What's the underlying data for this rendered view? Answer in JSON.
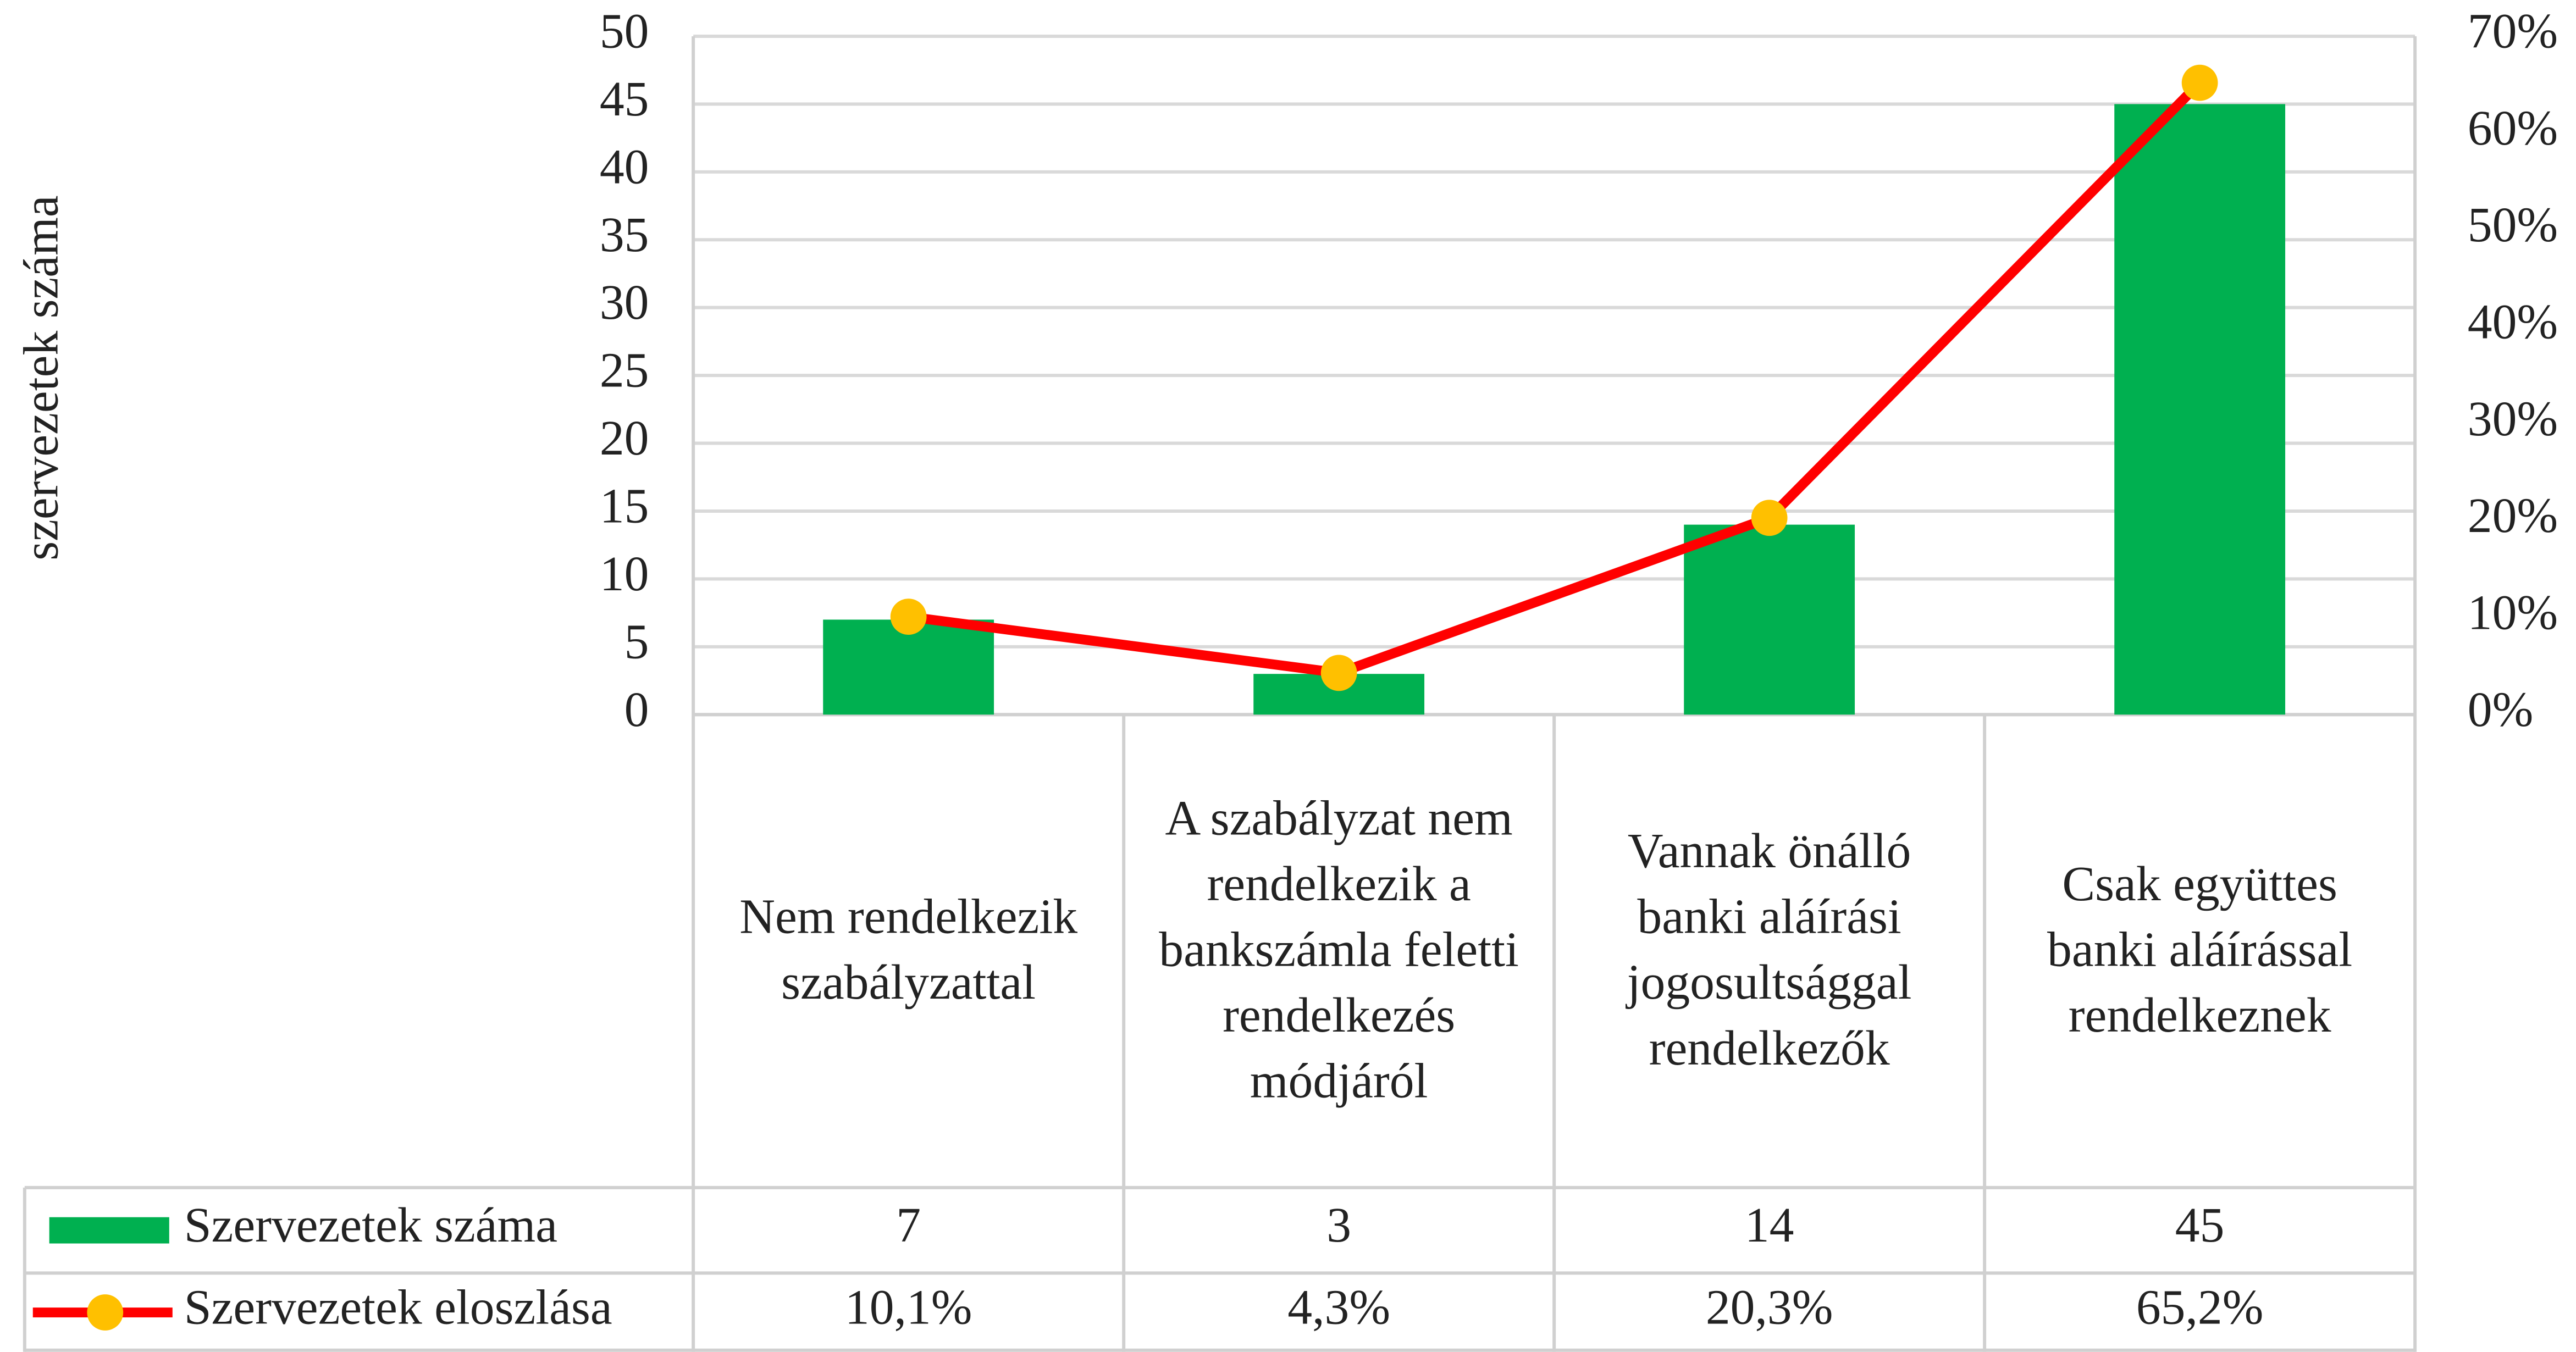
{
  "chart_data": {
    "type": "bar",
    "y_label": "szervezetek száma",
    "categories": [
      "Nem rendelkezik szabályzattal",
      "A szabályzat nem rendelkezik a bankszámla feletti rendelkezés módjáról",
      "Vannak önálló banki aláírási jogosultsággal rendelkezők",
      "Csak együttes banki aláírással rendelkeznek"
    ],
    "series": [
      {
        "name": "Szervezetek száma",
        "type": "bar",
        "color": "#00b050",
        "values": [
          7,
          3,
          14,
          45
        ]
      },
      {
        "name": "Szervezetek eloszlása",
        "type": "line",
        "axis": "y2",
        "color": "#ff0000",
        "marker_color": "#ffc000",
        "values": [
          10.1,
          4.3,
          20.3,
          65.2
        ],
        "value_labels": [
          "10,1%",
          "4,3%",
          "20,3%",
          "65,2%"
        ]
      }
    ],
    "ylim": [
      0,
      50
    ],
    "yticks": [
      0,
      5,
      10,
      15,
      20,
      25,
      30,
      35,
      40,
      45,
      50
    ],
    "y2lim": [
      0,
      70
    ],
    "y2ticks": [
      {
        "value": 0,
        "label": "0%"
      },
      {
        "value": 10,
        "label": "10%"
      },
      {
        "value": 20,
        "label": "20%"
      },
      {
        "value": 30,
        "label": "30%"
      },
      {
        "value": 40,
        "label": "40%"
      },
      {
        "value": 50,
        "label": "50%"
      },
      {
        "value": 60,
        "label": "60%"
      },
      {
        "value": 70,
        "label": "70%"
      }
    ],
    "grid": true,
    "data_table": true
  }
}
